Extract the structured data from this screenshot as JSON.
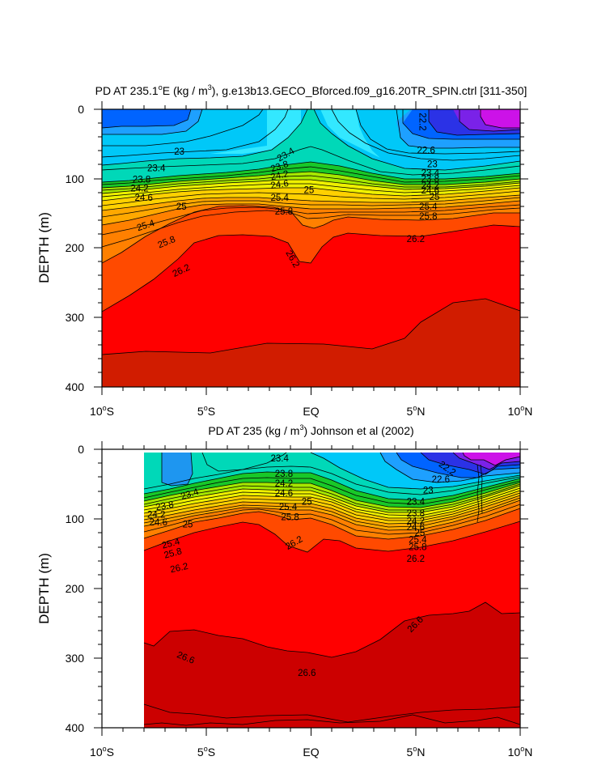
{
  "chart_data": [
    {
      "type": "contour",
      "title": "PD AT 235.1°E (kg / m³), g.e13b13.GECO_Bforced.f09_g16.20TR_SPIN.ctrl [311-350]",
      "title_parts": {
        "pre": "PD AT 235.1",
        "deg": "o",
        "mid": "E (kg / m",
        "exp": "3",
        "post": "), g.e13b13.GECO_Bforced.f09_g16.20TR_SPIN.ctrl [311-350]"
      },
      "ylabel": "DEPTH (m)",
      "xlim": [
        -10,
        10
      ],
      "ylim": [
        400,
        0
      ],
      "yticks": [
        "0",
        "100",
        "200",
        "300",
        "400"
      ],
      "xticks": [
        {
          "num": "10",
          "deg": "o",
          "hem": "S"
        },
        {
          "num": "5",
          "deg": "o",
          "hem": "S"
        },
        {
          "num": "EQ",
          "deg": "",
          "hem": ""
        },
        {
          "num": "5",
          "deg": "o",
          "hem": "N"
        },
        {
          "num": "10",
          "deg": "o",
          "hem": "N"
        }
      ],
      "contour_interval": 0.2,
      "data_start_lat": -10,
      "contour_labels": [
        {
          "text": "22.2",
          "lat": 5.3,
          "depth": 18,
          "rot": 90
        },
        {
          "text": "23",
          "lat": -6.3,
          "depth": 62,
          "rot": 0
        },
        {
          "text": "23.4",
          "lat": -7.4,
          "depth": 86,
          "rot": 0
        },
        {
          "text": "23.8",
          "lat": -8.1,
          "depth": 102,
          "rot": 0
        },
        {
          "text": "24.2",
          "lat": -8.2,
          "depth": 115,
          "rot": 0
        },
        {
          "text": "24.6",
          "lat": -8.0,
          "depth": 128,
          "rot": 0
        },
        {
          "text": "25",
          "lat": -6.2,
          "depth": 141,
          "rot": 0
        },
        {
          "text": "25.4",
          "lat": -7.9,
          "depth": 168,
          "rot": -18
        },
        {
          "text": "25.8",
          "lat": -6.9,
          "depth": 192,
          "rot": -22
        },
        {
          "text": "26.2",
          "lat": -6.2,
          "depth": 233,
          "rot": -25
        },
        {
          "text": "23.4",
          "lat": -1.2,
          "depth": 66,
          "rot": -30
        },
        {
          "text": "23.8",
          "lat": -1.5,
          "depth": 83,
          "rot": -18
        },
        {
          "text": "24.2",
          "lat": -1.5,
          "depth": 96,
          "rot": -12
        },
        {
          "text": "24.6",
          "lat": -1.5,
          "depth": 109,
          "rot": -8
        },
        {
          "text": "25",
          "lat": -0.1,
          "depth": 117,
          "rot": 0
        },
        {
          "text": "25.4",
          "lat": -1.5,
          "depth": 128,
          "rot": 0
        },
        {
          "text": "25.8",
          "lat": -1.3,
          "depth": 148,
          "rot": 0
        },
        {
          "text": "26.2",
          "lat": -0.9,
          "depth": 216,
          "rot": 60
        },
        {
          "text": "22.6",
          "lat": 5.5,
          "depth": 60,
          "rot": 0
        },
        {
          "text": "23",
          "lat": 5.8,
          "depth": 80,
          "rot": 0
        },
        {
          "text": "23.4",
          "lat": 5.7,
          "depth": 93,
          "rot": 0
        },
        {
          "text": "23.8",
          "lat": 5.7,
          "depth": 101,
          "rot": 0
        },
        {
          "text": "24.2",
          "lat": 5.7,
          "depth": 111,
          "rot": 0
        },
        {
          "text": "24.6",
          "lat": 5.7,
          "depth": 118,
          "rot": 0
        },
        {
          "text": "25",
          "lat": 5.9,
          "depth": 127,
          "rot": 0
        },
        {
          "text": "25.4",
          "lat": 5.6,
          "depth": 141,
          "rot": 0
        },
        {
          "text": "25.8",
          "lat": 5.6,
          "depth": 155,
          "rot": 0
        },
        {
          "text": "26.2",
          "lat": 5.0,
          "depth": 188,
          "rot": 0
        }
      ]
    },
    {
      "type": "contour",
      "title": "PD AT 235 (kg / m³) Johnson et al (2002)",
      "title_parts": {
        "pre": "PD AT 235 (kg / m",
        "deg": "",
        "mid": "",
        "exp": "3",
        "post": ") Johnson et al (2002)"
      },
      "ylabel": "DEPTH (m)",
      "xlim": [
        -10,
        10
      ],
      "ylim": [
        400,
        0
      ],
      "yticks": [
        "0",
        "100",
        "200",
        "300",
        "400"
      ],
      "xticks": [
        {
          "num": "10",
          "deg": "o",
          "hem": "S"
        },
        {
          "num": "5",
          "deg": "o",
          "hem": "S"
        },
        {
          "num": "EQ",
          "deg": "",
          "hem": ""
        },
        {
          "num": "5",
          "deg": "o",
          "hem": "N"
        },
        {
          "num": "10",
          "deg": "o",
          "hem": "N"
        }
      ],
      "contour_interval": 0.2,
      "data_start_lat": -8,
      "contour_labels": [
        {
          "text": "23.4",
          "lat": -1.5,
          "depth": 14,
          "rot": 0
        },
        {
          "text": "23.8",
          "lat": -1.3,
          "depth": 36,
          "rot": 0
        },
        {
          "text": "24.2",
          "lat": -1.3,
          "depth": 50,
          "rot": 0
        },
        {
          "text": "24.6",
          "lat": -1.3,
          "depth": 64,
          "rot": 0
        },
        {
          "text": "25",
          "lat": -0.2,
          "depth": 76,
          "rot": 0
        },
        {
          "text": "25.4",
          "lat": -1.1,
          "depth": 84,
          "rot": 0
        },
        {
          "text": "25.8",
          "lat": -1.0,
          "depth": 98,
          "rot": 0
        },
        {
          "text": "26.2",
          "lat": -0.8,
          "depth": 135,
          "rot": -30
        },
        {
          "text": "23.4",
          "lat": -5.8,
          "depth": 65,
          "rot": -18
        },
        {
          "text": "23.8",
          "lat": -7.0,
          "depth": 82,
          "rot": -10
        },
        {
          "text": "24.2",
          "lat": -7.4,
          "depth": 95,
          "rot": 0
        },
        {
          "text": "24.6",
          "lat": -7.3,
          "depth": 106,
          "rot": 0
        },
        {
          "text": "25",
          "lat": -5.9,
          "depth": 109,
          "rot": 0
        },
        {
          "text": "25.4",
          "lat": -6.7,
          "depth": 136,
          "rot": -15
        },
        {
          "text": "25.8",
          "lat": -6.6,
          "depth": 150,
          "rot": -15
        },
        {
          "text": "26.2",
          "lat": -6.3,
          "depth": 171,
          "rot": -12
        },
        {
          "text": "22.2",
          "lat": 6.5,
          "depth": 28,
          "rot": 35
        },
        {
          "text": "22.6",
          "lat": 6.2,
          "depth": 44,
          "rot": 0
        },
        {
          "text": "23",
          "lat": 5.6,
          "depth": 60,
          "rot": 0
        },
        {
          "text": "23.4",
          "lat": 5.0,
          "depth": 76,
          "rot": 0
        },
        {
          "text": "23.8",
          "lat": 5.0,
          "depth": 93,
          "rot": 0
        },
        {
          "text": "24.2",
          "lat": 5.0,
          "depth": 104,
          "rot": 0
        },
        {
          "text": "24.6",
          "lat": 5.0,
          "depth": 113,
          "rot": 0
        },
        {
          "text": "25",
          "lat": 5.2,
          "depth": 121,
          "rot": 0
        },
        {
          "text": "25.4",
          "lat": 5.1,
          "depth": 131,
          "rot": 0
        },
        {
          "text": "25.8",
          "lat": 5.1,
          "depth": 141,
          "rot": 0
        },
        {
          "text": "26.2",
          "lat": 5.0,
          "depth": 158,
          "rot": 0
        },
        {
          "text": "26.6",
          "lat": 5.0,
          "depth": 252,
          "rot": -45
        },
        {
          "text": "26.6",
          "lat": -6.0,
          "depth": 300,
          "rot": 22
        },
        {
          "text": "26.6",
          "lat": -0.2,
          "depth": 322,
          "rot": 0
        }
      ]
    }
  ]
}
